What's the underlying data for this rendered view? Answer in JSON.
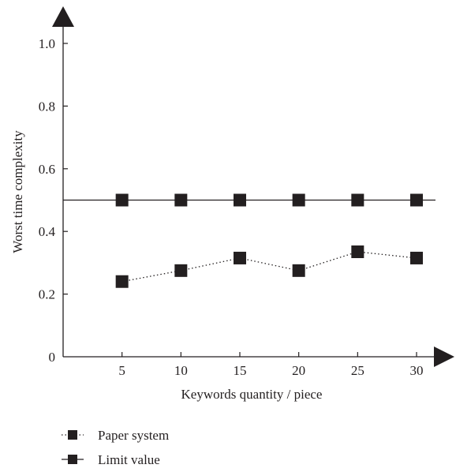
{
  "chart_data": {
    "type": "line",
    "xlabel": "Keywords quantity / piece",
    "ylabel": "Worst time complexity",
    "x": [
      5,
      10,
      15,
      20,
      25,
      30
    ],
    "x_ticks": [
      "5",
      "10",
      "15",
      "20",
      "25",
      "30"
    ],
    "y_ticks": [
      "0",
      "0.2",
      "0.4",
      "0.6",
      "0.8",
      "1.0"
    ],
    "xlim": [
      0,
      30
    ],
    "ylim": [
      0,
      1.0
    ],
    "grid": false,
    "legend_position": "bottom-left",
    "series": [
      {
        "name": "Paper system",
        "values": [
          0.24,
          0.275,
          0.315,
          0.275,
          0.335,
          0.315
        ],
        "line_style": "dotted",
        "marker": "square",
        "color": "#231f20"
      },
      {
        "name": "Limit value",
        "values": [
          0.5,
          0.5,
          0.5,
          0.5,
          0.5,
          0.5
        ],
        "line_style": "solid",
        "marker": "square",
        "color": "#231f20"
      }
    ]
  }
}
